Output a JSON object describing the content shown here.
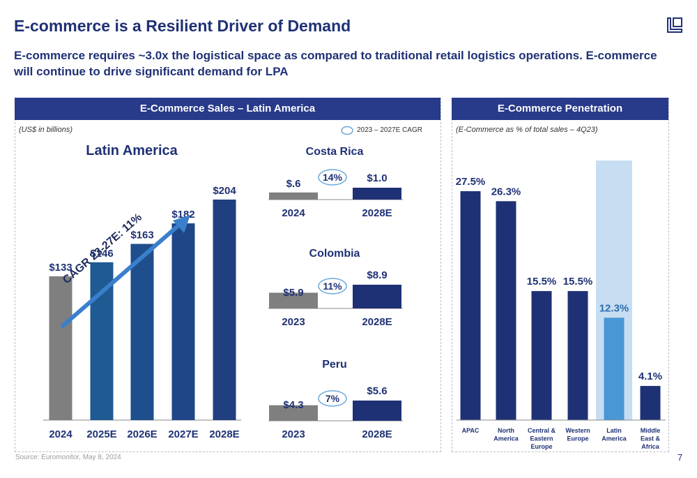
{
  "title": "E-commerce is a Resilient Driver of Demand",
  "subtitle": "E-commerce requires ~3.0x the logistical space as compared to traditional retail logistics operations. E-commerce will continue to drive significant demand for LPA",
  "left_panel": {
    "header": "E-Commerce Sales – Latin America",
    "units_note": "(US$ in billions)",
    "cagr_legend": "2023 – 2027E CAGR"
  },
  "right_panel": {
    "header": "E-Commerce Penetration",
    "note": "(E-Commerce as % of total sales – 4Q23)"
  },
  "cagr_arrow_label": "CAGR 23-27E: 11%",
  "colors": {
    "navy": "#1f3175",
    "header": "#283a8a",
    "gray": "#7f7f7f",
    "bar_gradient": [
      "#7f7f7f",
      "#1f5a93",
      "#1f4e8c",
      "#1f4788",
      "#1f3f80"
    ],
    "highlight_bar": "#4a97d6",
    "highlight_bg": "#c7ddf1",
    "arrow": "#3a7fcc"
  },
  "chart_data": [
    {
      "type": "bar",
      "title": "Latin America",
      "categories": [
        "2024",
        "2025E",
        "2026E",
        "2027E",
        "2028E"
      ],
      "values": [
        133,
        146,
        163,
        182,
        204
      ],
      "labels": [
        "$133",
        "$146",
        "$163",
        "$182",
        "$204"
      ]
    },
    {
      "type": "bar",
      "title": "Costa Rica",
      "categories": [
        "2024",
        "2028E"
      ],
      "values": [
        0.6,
        1.0
      ],
      "labels": [
        "$.6",
        "$1.0"
      ],
      "cagr": "14%"
    },
    {
      "type": "bar",
      "title": "Colombia",
      "categories": [
        "2023",
        "2028E"
      ],
      "values": [
        5.9,
        8.9
      ],
      "labels": [
        "$5.9",
        "$8.9"
      ],
      "cagr": "11%"
    },
    {
      "type": "bar",
      "title": "Peru",
      "categories": [
        "2023",
        "2028E"
      ],
      "values": [
        4.3,
        5.6
      ],
      "labels": [
        "$4.3",
        "$5.6"
      ],
      "cagr": "7%"
    },
    {
      "type": "bar",
      "title": "E-Commerce Penetration",
      "categories": [
        "APAC",
        "North America",
        "Central & Eastern Europe",
        "Western Europe",
        "Latin America",
        "Middle East & Africa"
      ],
      "values": [
        27.5,
        26.3,
        15.5,
        15.5,
        12.3,
        4.1
      ],
      "labels": [
        "27.5%",
        "26.3%",
        "15.5%",
        "15.5%",
        "12.3%",
        "4.1%"
      ],
      "highlight": "Latin America"
    }
  ],
  "footer": "Source: Euromonitor, May 8, 2024",
  "page_number": "7"
}
